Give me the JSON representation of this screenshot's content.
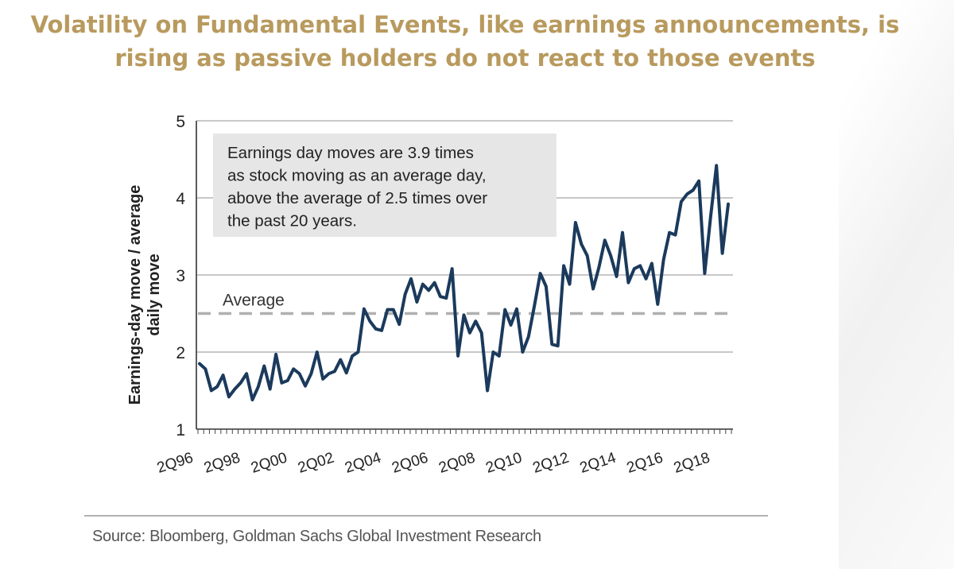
{
  "headline": {
    "line1": "Volatility on Fundamental Events, like earnings announcements, is",
    "line2": "rising as passive holders do not react to those events"
  },
  "colors": {
    "headline": "#b89a5e",
    "series": "#1b3a5c",
    "average_line": "#b0b0b0",
    "annotation_bg": "#e6e6e6",
    "grid": "#a8a8a8"
  },
  "chart_data": {
    "type": "line",
    "title": "",
    "ylabel": "Earnings-day move / average daily move",
    "ylabel_lines": [
      "Earnings-day move / average",
      "daily move"
    ],
    "ylim": [
      1,
      5
    ],
    "yticks": [
      "1",
      "2",
      "3",
      "4",
      "5"
    ],
    "xticks": [
      "2Q96",
      "2Q98",
      "2Q00",
      "2Q02",
      "2Q04",
      "2Q06",
      "2Q08",
      "2Q10",
      "2Q12",
      "2Q14",
      "2Q16",
      "2Q18"
    ],
    "annotation": [
      "Earnings day moves are 3.9 times",
      "as stock moving as an average day,",
      "above the average of 2.5 times over",
      "the past 20 years."
    ],
    "average": {
      "label": "Average",
      "value": 2.5
    },
    "series": [
      {
        "name": "Earnings-day move / average daily move",
        "values": [
          1.85,
          1.78,
          1.5,
          1.55,
          1.7,
          1.42,
          1.52,
          1.6,
          1.72,
          1.38,
          1.55,
          1.82,
          1.52,
          1.97,
          1.6,
          1.63,
          1.78,
          1.72,
          1.56,
          1.72,
          2.0,
          1.65,
          1.72,
          1.75,
          1.9,
          1.73,
          1.95,
          2.0,
          2.56,
          2.4,
          2.3,
          2.28,
          2.55,
          2.55,
          2.36,
          2.75,
          2.95,
          2.65,
          2.88,
          2.8,
          2.9,
          2.72,
          2.7,
          3.08,
          1.95,
          2.48,
          2.25,
          2.4,
          2.25,
          1.5,
          2.0,
          1.95,
          2.55,
          2.35,
          2.56,
          2.0,
          2.2,
          2.6,
          3.02,
          2.85,
          2.1,
          2.08,
          3.12,
          2.88,
          3.68,
          3.4,
          3.25,
          2.82,
          3.1,
          3.45,
          3.25,
          2.98,
          3.55,
          2.9,
          3.08,
          3.12,
          2.95,
          3.15,
          2.62,
          3.2,
          3.55,
          3.52,
          3.95,
          4.05,
          4.1,
          4.22,
          3.02,
          3.75,
          4.42,
          3.28,
          3.92
        ]
      }
    ],
    "source": "Source: Bloomberg, Goldman Sachs Global Investment Research"
  }
}
